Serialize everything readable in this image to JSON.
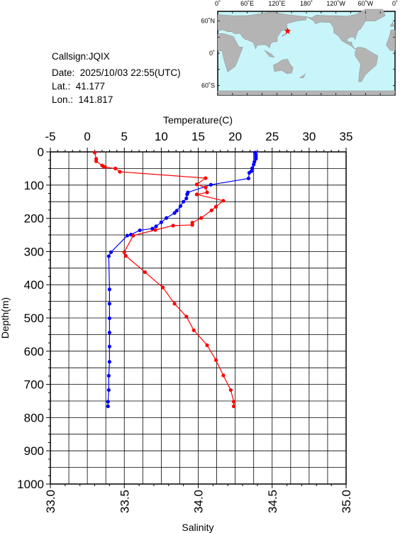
{
  "station": {
    "callsign_text": "Callsign:JQIX",
    "date_text": "Date:  2025/10/03 22:55(UTC)",
    "lat_text": "Lat.:  41.177",
    "lon_text": "Lon.:  141.817"
  },
  "map": {
    "top_labels": [
      "0˚",
      "60˚E",
      "120˚E",
      "180˚",
      "120˚W",
      "60˚W",
      "0˚"
    ],
    "left_labels": [
      "60˚N",
      "0˚",
      "60˚S"
    ],
    "ocean_color": "#c8f5fa",
    "land_color": "#b4b4b4",
    "marker_color": "#ff0000",
    "marker_lon": 141.817,
    "marker_lat": 41.177
  },
  "chart_data": {
    "type": "line",
    "top_axis": {
      "label": "Temperature(C)",
      "range": [
        -5,
        35
      ],
      "ticks": [
        "-5",
        "0",
        "5",
        "10",
        "15",
        "20",
        "25",
        "30",
        "35"
      ]
    },
    "bottom_axis": {
      "label": "Salinity",
      "range": [
        33.0,
        35.0
      ],
      "ticks": [
        "33.0",
        "33.5",
        "34.0",
        "34.5",
        "35.0"
      ]
    },
    "y_axis": {
      "label": "Depth(m)",
      "range": [
        0,
        1000
      ],
      "inverted": true,
      "ticks": [
        "0",
        "100",
        "200",
        "300",
        "400",
        "500",
        "600",
        "700",
        "800",
        "900",
        "1000"
      ]
    },
    "grid": true,
    "series": [
      {
        "variable": "temperature",
        "color": "#0000ff",
        "points": [
          [
            22.7,
            2
          ],
          [
            22.8,
            7
          ],
          [
            22.8,
            11
          ],
          [
            22.8,
            16
          ],
          [
            22.8,
            21
          ],
          [
            22.6,
            30
          ],
          [
            22.5,
            38
          ],
          [
            22.3,
            49
          ],
          [
            22.2,
            58
          ],
          [
            21.9,
            63
          ],
          [
            21.8,
            80
          ],
          [
            16.7,
            99
          ],
          [
            13.6,
            122
          ],
          [
            13.5,
            128
          ],
          [
            13.4,
            140
          ],
          [
            13.0,
            150
          ],
          [
            12.6,
            163
          ],
          [
            12.1,
            177
          ],
          [
            11.8,
            184
          ],
          [
            10.7,
            199
          ],
          [
            10.0,
            212
          ],
          [
            9.3,
            224
          ],
          [
            8.8,
            231
          ],
          [
            7.1,
            236
          ],
          [
            5.9,
            249
          ],
          [
            5.4,
            252
          ],
          [
            3.2,
            302
          ],
          [
            2.9,
            314
          ],
          [
            3.0,
            414
          ],
          [
            3.0,
            457
          ],
          [
            3.0,
            501
          ],
          [
            3.0,
            544
          ],
          [
            3.0,
            586
          ],
          [
            3.0,
            632
          ],
          [
            2.9,
            674
          ],
          [
            2.9,
            717
          ],
          [
            2.8,
            752
          ],
          [
            2.8,
            766
          ]
        ]
      },
      {
        "variable": "salinity",
        "color": "#ff0000",
        "points": [
          [
            33.3,
            2
          ],
          [
            33.31,
            21
          ],
          [
            33.31,
            28
          ],
          [
            33.35,
            41
          ],
          [
            33.36,
            44
          ],
          [
            33.37,
            46
          ],
          [
            33.44,
            50
          ],
          [
            33.47,
            60
          ],
          [
            34.05,
            79
          ],
          [
            33.99,
            98
          ],
          [
            34.05,
            107
          ],
          [
            34.06,
            122
          ],
          [
            33.99,
            128
          ],
          [
            34.17,
            147
          ],
          [
            34.12,
            165
          ],
          [
            34.09,
            176
          ],
          [
            34.02,
            199
          ],
          [
            33.96,
            213
          ],
          [
            33.96,
            220
          ],
          [
            33.83,
            222
          ],
          [
            33.71,
            235
          ],
          [
            33.56,
            252
          ],
          [
            33.5,
            302
          ],
          [
            33.51,
            313
          ],
          [
            33.64,
            362
          ],
          [
            33.76,
            408
          ],
          [
            33.84,
            457
          ],
          [
            33.92,
            496
          ],
          [
            33.97,
            537
          ],
          [
            34.06,
            582
          ],
          [
            34.12,
            627
          ],
          [
            34.17,
            673
          ],
          [
            34.22,
            717
          ],
          [
            34.24,
            752
          ],
          [
            34.24,
            766
          ]
        ]
      }
    ]
  }
}
